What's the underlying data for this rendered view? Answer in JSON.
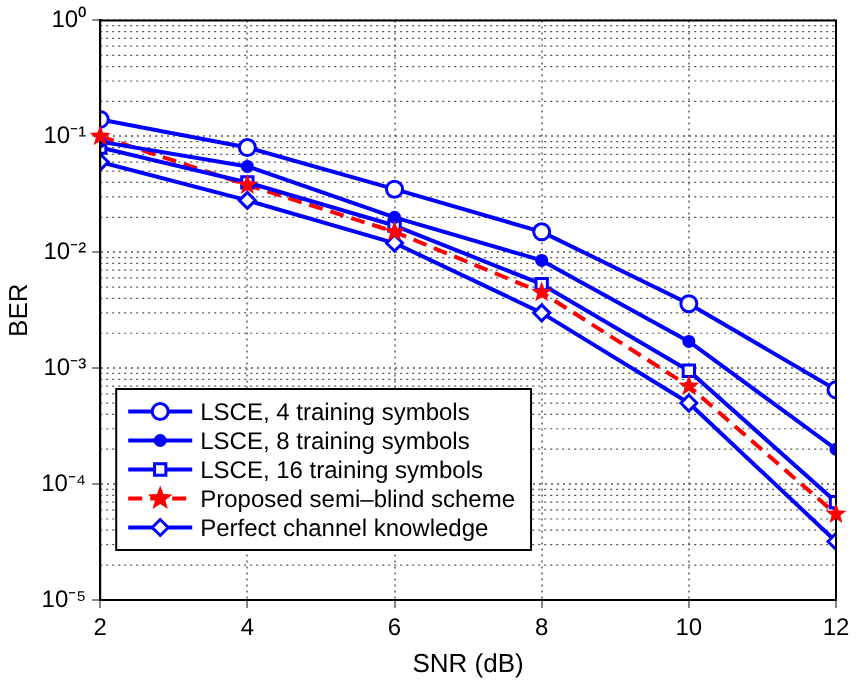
{
  "chart_data": {
    "type": "line",
    "xlabel": "SNR (dB)",
    "ylabel": "BER",
    "log": "y",
    "grid": true,
    "legend": "bottom left",
    "x": [
      2,
      4,
      6,
      8,
      10,
      12
    ],
    "xlim": [
      2,
      12
    ],
    "xticks": [
      2,
      4,
      6,
      8,
      10,
      12
    ],
    "ylim": [
      1e-05,
      1
    ],
    "yticks": [
      {
        "value": 1e-05,
        "label": "10⁻⁵"
      },
      {
        "value": 0.0001,
        "label": "10⁻⁴"
      },
      {
        "value": 0.001,
        "label": "10⁻³"
      },
      {
        "value": 0.01,
        "label": "10⁻²"
      },
      {
        "value": 0.1,
        "label": "10⁻¹"
      },
      {
        "value": 1,
        "label": "10⁰"
      }
    ],
    "series": [
      {
        "name": "LSCE, 4 training symbols",
        "color": "#0000ff",
        "marker": "circle",
        "line_style": "solid",
        "values": [
          0.14,
          0.08,
          0.035,
          0.015,
          0.0036,
          0.00065
        ]
      },
      {
        "name": "LSCE, 8 training symbols",
        "color": "#0000ff",
        "marker": "dot",
        "line_style": "solid",
        "values": [
          0.09,
          0.055,
          0.02,
          0.0085,
          0.0017,
          0.0002
        ]
      },
      {
        "name": "LSCE, 16 training symbols",
        "color": "#0000ff",
        "marker": "square",
        "line_style": "solid",
        "values": [
          0.08,
          0.04,
          0.017,
          0.0053,
          0.00095,
          7e-05
        ]
      },
      {
        "name": "Proposed semi–blind scheme",
        "color": "#ff0000",
        "marker": "star",
        "line_style": "dashed",
        "values": [
          0.1,
          0.038,
          0.015,
          0.0045,
          0.0007,
          5.5e-05
        ]
      },
      {
        "name": "Perfect channel knowledge",
        "color": "#0000ff",
        "marker": "diamond",
        "line_style": "solid",
        "values": [
          0.06,
          0.028,
          0.012,
          0.003,
          0.0005,
          3.2e-05
        ]
      }
    ]
  }
}
